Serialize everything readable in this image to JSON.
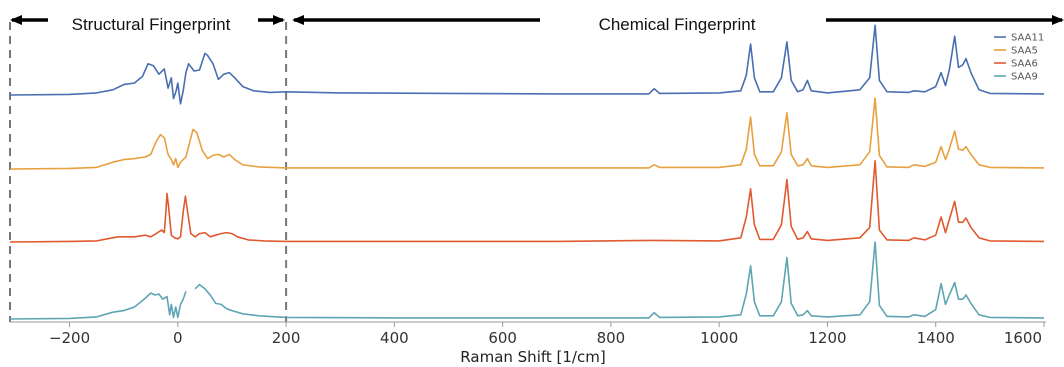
{
  "chart_data": {
    "type": "line",
    "xlabel": "Raman Shift [1/cm]",
    "xlim": [
      -310,
      1600
    ],
    "xticks": [
      -200,
      0,
      200,
      400,
      600,
      800,
      1000,
      1200,
      1400,
      1600
    ],
    "grid": false,
    "legend_position": "top-right",
    "stacked": true,
    "regions": [
      {
        "label": "Structural Fingerprint",
        "x_from": -310,
        "x_to": 200
      },
      {
        "label": "Chemical Fingerprint",
        "x_from": 200,
        "x_to": 1600
      }
    ],
    "boundary_lines": [
      -310,
      200
    ],
    "series": [
      {
        "name": "SAA11",
        "color": "#4a6fb0",
        "points": [
          [
            -310,
            0.02
          ],
          [
            -200,
            0.03
          ],
          [
            -150,
            0.06
          ],
          [
            -120,
            0.12
          ],
          [
            -100,
            0.22
          ],
          [
            -80,
            0.25
          ],
          [
            -65,
            0.38
          ],
          [
            -55,
            0.62
          ],
          [
            -45,
            0.58
          ],
          [
            -35,
            0.42
          ],
          [
            -25,
            0.52
          ],
          [
            -18,
            0.15
          ],
          [
            -12,
            0.35
          ],
          [
            -8,
            -0.05
          ],
          [
            -3,
            0.1
          ],
          [
            0,
            0.25
          ],
          [
            5,
            -0.15
          ],
          [
            10,
            0.1
          ],
          [
            15,
            0.45
          ],
          [
            20,
            0.62
          ],
          [
            30,
            0.48
          ],
          [
            40,
            0.5
          ],
          [
            50,
            0.82
          ],
          [
            55,
            0.78
          ],
          [
            65,
            0.62
          ],
          [
            75,
            0.32
          ],
          [
            85,
            0.42
          ],
          [
            95,
            0.45
          ],
          [
            105,
            0.35
          ],
          [
            120,
            0.18
          ],
          [
            140,
            0.1
          ],
          [
            170,
            0.07
          ],
          [
            200,
            0.08
          ],
          [
            300,
            0.06
          ],
          [
            500,
            0.05
          ],
          [
            700,
            0.04
          ],
          [
            870,
            0.04
          ],
          [
            880,
            0.14
          ],
          [
            890,
            0.05
          ],
          [
            1000,
            0.06
          ],
          [
            1040,
            0.1
          ],
          [
            1050,
            0.4
          ],
          [
            1058,
            1.0
          ],
          [
            1065,
            0.35
          ],
          [
            1075,
            0.08
          ],
          [
            1100,
            0.08
          ],
          [
            1115,
            0.35
          ],
          [
            1125,
            1.04
          ],
          [
            1133,
            0.3
          ],
          [
            1145,
            0.08
          ],
          [
            1155,
            0.12
          ],
          [
            1163,
            0.3
          ],
          [
            1170,
            0.1
          ],
          [
            1200,
            0.06
          ],
          [
            1260,
            0.12
          ],
          [
            1278,
            0.35
          ],
          [
            1288,
            1.36
          ],
          [
            1296,
            0.3
          ],
          [
            1310,
            0.08
          ],
          [
            1350,
            0.07
          ],
          [
            1360,
            0.1
          ],
          [
            1380,
            0.08
          ],
          [
            1400,
            0.18
          ],
          [
            1410,
            0.45
          ],
          [
            1418,
            0.2
          ],
          [
            1425,
            0.5
          ],
          [
            1435,
            1.15
          ],
          [
            1442,
            0.55
          ],
          [
            1450,
            0.6
          ],
          [
            1456,
            0.72
          ],
          [
            1465,
            0.45
          ],
          [
            1480,
            0.12
          ],
          [
            1500,
            0.05
          ],
          [
            1600,
            0.04
          ]
        ]
      },
      {
        "name": "SAA5",
        "color": "#e8a040",
        "points": [
          [
            -310,
            0.02
          ],
          [
            -200,
            0.03
          ],
          [
            -150,
            0.05
          ],
          [
            -120,
            0.15
          ],
          [
            -100,
            0.2
          ],
          [
            -80,
            0.22
          ],
          [
            -60,
            0.25
          ],
          [
            -50,
            0.3
          ],
          [
            -40,
            0.55
          ],
          [
            -32,
            0.68
          ],
          [
            -25,
            0.62
          ],
          [
            -18,
            0.3
          ],
          [
            -12,
            0.2
          ],
          [
            -8,
            0.1
          ],
          [
            -4,
            0.22
          ],
          [
            0,
            0.05
          ],
          [
            5,
            0.15
          ],
          [
            10,
            0.2
          ],
          [
            15,
            0.25
          ],
          [
            20,
            0.45
          ],
          [
            28,
            0.78
          ],
          [
            35,
            0.72
          ],
          [
            45,
            0.38
          ],
          [
            55,
            0.22
          ],
          [
            65,
            0.28
          ],
          [
            75,
            0.3
          ],
          [
            85,
            0.25
          ],
          [
            95,
            0.3
          ],
          [
            105,
            0.2
          ],
          [
            120,
            0.1
          ],
          [
            150,
            0.06
          ],
          [
            200,
            0.04
          ],
          [
            400,
            0.04
          ],
          [
            700,
            0.04
          ],
          [
            870,
            0.04
          ],
          [
            880,
            0.1
          ],
          [
            890,
            0.05
          ],
          [
            1000,
            0.05
          ],
          [
            1040,
            0.1
          ],
          [
            1050,
            0.4
          ],
          [
            1058,
            1.02
          ],
          [
            1065,
            0.3
          ],
          [
            1075,
            0.08
          ],
          [
            1100,
            0.08
          ],
          [
            1115,
            0.35
          ],
          [
            1125,
            1.1
          ],
          [
            1133,
            0.3
          ],
          [
            1145,
            0.08
          ],
          [
            1155,
            0.1
          ],
          [
            1163,
            0.22
          ],
          [
            1170,
            0.08
          ],
          [
            1200,
            0.05
          ],
          [
            1260,
            0.1
          ],
          [
            1278,
            0.35
          ],
          [
            1288,
            1.38
          ],
          [
            1296,
            0.28
          ],
          [
            1310,
            0.06
          ],
          [
            1350,
            0.05
          ],
          [
            1360,
            0.1
          ],
          [
            1380,
            0.07
          ],
          [
            1400,
            0.15
          ],
          [
            1410,
            0.45
          ],
          [
            1418,
            0.2
          ],
          [
            1425,
            0.4
          ],
          [
            1435,
            0.75
          ],
          [
            1442,
            0.4
          ],
          [
            1450,
            0.38
          ],
          [
            1456,
            0.45
          ],
          [
            1465,
            0.3
          ],
          [
            1480,
            0.1
          ],
          [
            1500,
            0.05
          ],
          [
            1600,
            0.04
          ]
        ]
      },
      {
        "name": "SAA6",
        "color": "#e05a30",
        "points": [
          [
            -310,
            0.02
          ],
          [
            -200,
            0.03
          ],
          [
            -150,
            0.04
          ],
          [
            -130,
            0.08
          ],
          [
            -110,
            0.12
          ],
          [
            -80,
            0.12
          ],
          [
            -60,
            0.15
          ],
          [
            -50,
            0.12
          ],
          [
            -40,
            0.18
          ],
          [
            -30,
            0.25
          ],
          [
            -25,
            0.2
          ],
          [
            -22,
            0.6
          ],
          [
            -20,
            0.95
          ],
          [
            -17,
            0.7
          ],
          [
            -12,
            0.15
          ],
          [
            -6,
            0.1
          ],
          [
            0,
            0.08
          ],
          [
            5,
            0.12
          ],
          [
            10,
            0.6
          ],
          [
            14,
            0.9
          ],
          [
            18,
            0.6
          ],
          [
            24,
            0.18
          ],
          [
            32,
            0.12
          ],
          [
            40,
            0.18
          ],
          [
            50,
            0.2
          ],
          [
            60,
            0.12
          ],
          [
            70,
            0.15
          ],
          [
            80,
            0.18
          ],
          [
            90,
            0.2
          ],
          [
            100,
            0.18
          ],
          [
            110,
            0.12
          ],
          [
            130,
            0.06
          ],
          [
            160,
            0.04
          ],
          [
            200,
            0.03
          ],
          [
            400,
            0.03
          ],
          [
            700,
            0.03
          ],
          [
            880,
            0.05
          ],
          [
            1000,
            0.04
          ],
          [
            1040,
            0.1
          ],
          [
            1050,
            0.5
          ],
          [
            1058,
            1.04
          ],
          [
            1065,
            0.35
          ],
          [
            1075,
            0.07
          ],
          [
            1100,
            0.07
          ],
          [
            1115,
            0.35
          ],
          [
            1125,
            1.22
          ],
          [
            1133,
            0.32
          ],
          [
            1145,
            0.07
          ],
          [
            1155,
            0.1
          ],
          [
            1163,
            0.22
          ],
          [
            1170,
            0.08
          ],
          [
            1200,
            0.05
          ],
          [
            1260,
            0.1
          ],
          [
            1278,
            0.3
          ],
          [
            1288,
            1.58
          ],
          [
            1296,
            0.25
          ],
          [
            1310,
            0.06
          ],
          [
            1350,
            0.05
          ],
          [
            1360,
            0.1
          ],
          [
            1380,
            0.06
          ],
          [
            1400,
            0.15
          ],
          [
            1410,
            0.5
          ],
          [
            1418,
            0.2
          ],
          [
            1425,
            0.45
          ],
          [
            1435,
            0.8
          ],
          [
            1442,
            0.4
          ],
          [
            1450,
            0.4
          ],
          [
            1456,
            0.48
          ],
          [
            1465,
            0.3
          ],
          [
            1480,
            0.1
          ],
          [
            1500,
            0.04
          ],
          [
            1600,
            0.03
          ]
        ]
      },
      {
        "name": "SAA9",
        "color": "#5fa5b3",
        "points": [
          [
            -310,
            0.02
          ],
          [
            -200,
            0.03
          ],
          [
            -150,
            0.06
          ],
          [
            -120,
            0.15
          ],
          [
            -100,
            0.18
          ],
          [
            -80,
            0.25
          ],
          [
            -60,
            0.42
          ],
          [
            -50,
            0.52
          ],
          [
            -42,
            0.48
          ],
          [
            -35,
            0.5
          ],
          [
            -28,
            0.4
          ],
          [
            -20,
            0.45
          ],
          [
            -15,
            0.1
          ],
          [
            -12,
            0.3
          ],
          [
            -8,
            0.05
          ],
          [
            -4,
            0.25
          ],
          [
            0,
            0.05
          ],
          [
            5,
            0.3
          ],
          [
            10,
            0.4
          ],
          [
            15,
            0.55
          ],
          [
            24,
            null
          ],
          [
            32,
            0.6
          ],
          [
            40,
            0.68
          ],
          [
            50,
            0.6
          ],
          [
            60,
            0.48
          ],
          [
            70,
            0.32
          ],
          [
            80,
            0.3
          ],
          [
            90,
            0.22
          ],
          [
            100,
            0.18
          ],
          [
            120,
            0.12
          ],
          [
            150,
            0.08
          ],
          [
            200,
            0.05
          ],
          [
            400,
            0.04
          ],
          [
            700,
            0.04
          ],
          [
            870,
            0.04
          ],
          [
            880,
            0.14
          ],
          [
            890,
            0.05
          ],
          [
            1000,
            0.06
          ],
          [
            1040,
            0.1
          ],
          [
            1050,
            0.5
          ],
          [
            1058,
            1.04
          ],
          [
            1065,
            0.35
          ],
          [
            1075,
            0.08
          ],
          [
            1100,
            0.08
          ],
          [
            1115,
            0.35
          ],
          [
            1125,
            1.2
          ],
          [
            1133,
            0.32
          ],
          [
            1145,
            0.08
          ],
          [
            1155,
            0.1
          ],
          [
            1163,
            0.18
          ],
          [
            1170,
            0.08
          ],
          [
            1200,
            0.06
          ],
          [
            1260,
            0.1
          ],
          [
            1278,
            0.35
          ],
          [
            1288,
            1.5
          ],
          [
            1296,
            0.28
          ],
          [
            1310,
            0.07
          ],
          [
            1350,
            0.06
          ],
          [
            1360,
            0.1
          ],
          [
            1380,
            0.07
          ],
          [
            1400,
            0.2
          ],
          [
            1410,
            0.7
          ],
          [
            1418,
            0.3
          ],
          [
            1425,
            0.48
          ],
          [
            1435,
            0.72
          ],
          [
            1442,
            0.4
          ],
          [
            1450,
            0.4
          ],
          [
            1456,
            0.48
          ],
          [
            1465,
            0.32
          ],
          [
            1480,
            0.1
          ],
          [
            1500,
            0.05
          ],
          [
            1600,
            0.04
          ]
        ]
      }
    ]
  }
}
